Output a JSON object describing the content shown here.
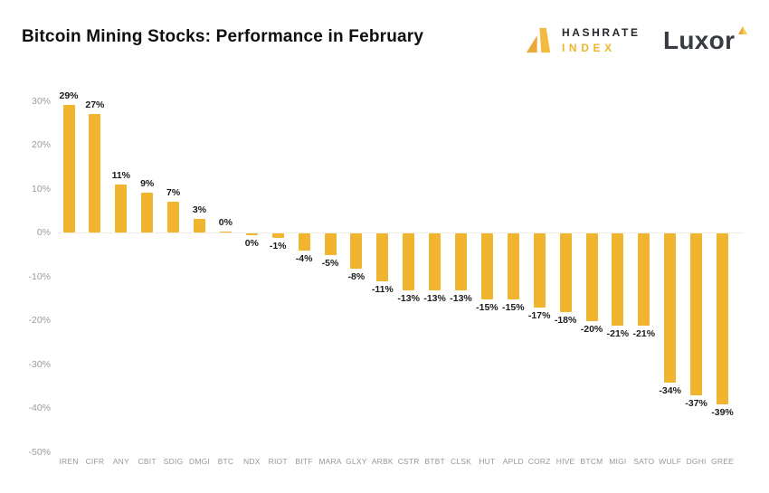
{
  "header": {
    "title": "Bitcoin Mining Stocks: Performance in February",
    "hashrate_logo": {
      "line1": "HASHRATE",
      "line2": "INDEX"
    },
    "luxor_logo": {
      "text": "Luxor"
    }
  },
  "colors": {
    "bar": "#F0B42E",
    "gold": "#F0B429",
    "title_text": "#0e0e10",
    "axis_text": "#9b9b9b",
    "category_text": "#95979c",
    "value_text": "#1a1b1e",
    "zero_line": "#f0ede7",
    "hashrate_text": "#26282c",
    "luxor_text": "#383c42",
    "background": "#ffffff"
  },
  "chart_data": {
    "type": "bar",
    "title": "Bitcoin Mining Stocks: Performance in February",
    "xlabel": "",
    "ylabel": "",
    "ylim": [
      -50,
      30
    ],
    "grid": false,
    "legend": null,
    "categories": [
      "IREN",
      "CIFR",
      "ANY",
      "CBIT",
      "SDIG",
      "DMGI",
      "BTC",
      "NDX",
      "RIOT",
      "BITF",
      "MARA",
      "GLXY",
      "ARBK",
      "CSTR",
      "BTBT",
      "CLSK",
      "HUT",
      "APLD",
      "CORZ",
      "HIVE",
      "BTCM",
      "MIGI",
      "SATO",
      "WULF",
      "DGHI",
      "GREE"
    ],
    "values": [
      29,
      27,
      11,
      9,
      7,
      3,
      0.2,
      -0.5,
      -1,
      -4,
      -5,
      -8,
      -11,
      -13,
      -13,
      -13,
      -15,
      -15,
      -17,
      -18,
      -20,
      -21,
      -21,
      -34,
      -37,
      -39
    ],
    "bar_labels": [
      "29%",
      "27%",
      "11%",
      "9%",
      "7%",
      "3%",
      "0%",
      "0%",
      "-1%",
      "-4%",
      "-5%",
      "-8%",
      "-11%",
      "-13%",
      "-13%",
      "-13%",
      "-15%",
      "-15%",
      "-17%",
      "-18%",
      "-20%",
      "-21%",
      "-21%",
      "-34%",
      "-37%",
      "-39%"
    ],
    "yticks": [
      {
        "label": "30%",
        "value": 30
      },
      {
        "label": "20%",
        "value": 20
      },
      {
        "label": "10%",
        "value": 10
      },
      {
        "label": "0%",
        "value": 0
      },
      {
        "label": "-10%",
        "value": -10
      },
      {
        "label": "-20%",
        "value": -20
      },
      {
        "label": "-30%",
        "value": -30
      },
      {
        "label": "-40%",
        "value": -40
      },
      {
        "label": "-50%",
        "value": -50
      }
    ]
  }
}
